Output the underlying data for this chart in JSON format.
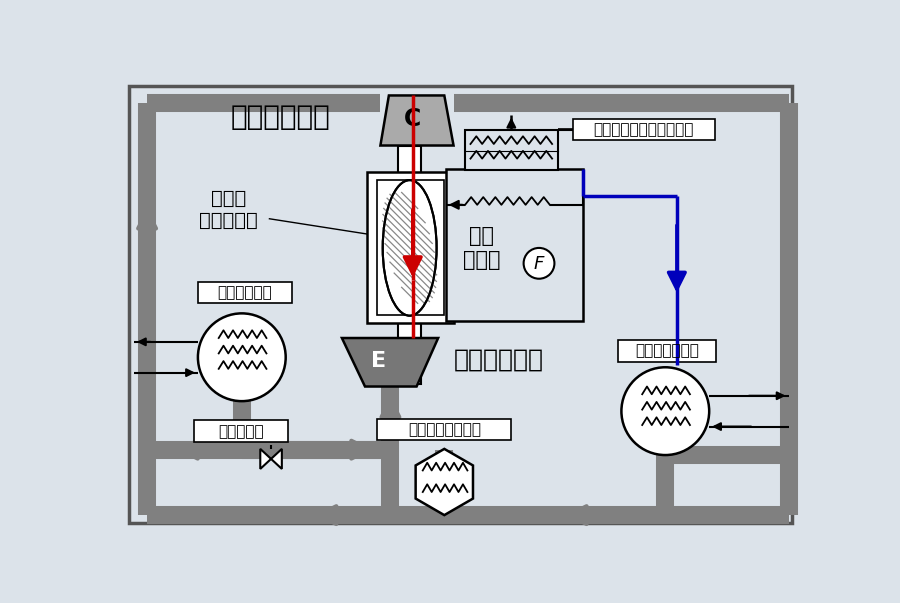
{
  "bg_color": "#dce3ea",
  "black": "#000000",
  "gray": "#808080",
  "red": "#cc0000",
  "blue": "#0000bb",
  "label_compressor": "コンプレッサ",
  "label_motor": "モータ\n（駅動源）",
  "label_C": "C",
  "label_E": "E",
  "label_expansion_turbine": "膨張タービン",
  "label_cooling_fan": "冷却\nファン",
  "label_F": "F",
  "label_radiator": "モータ冷却用ラジエータ",
  "label_water_hx": "水冷熱交換器",
  "label_brine_cooler": "ブラインクーラ",
  "label_balance_valve": "バランス弁",
  "label_waste_heat_hx": "排熱回収熱交換器"
}
